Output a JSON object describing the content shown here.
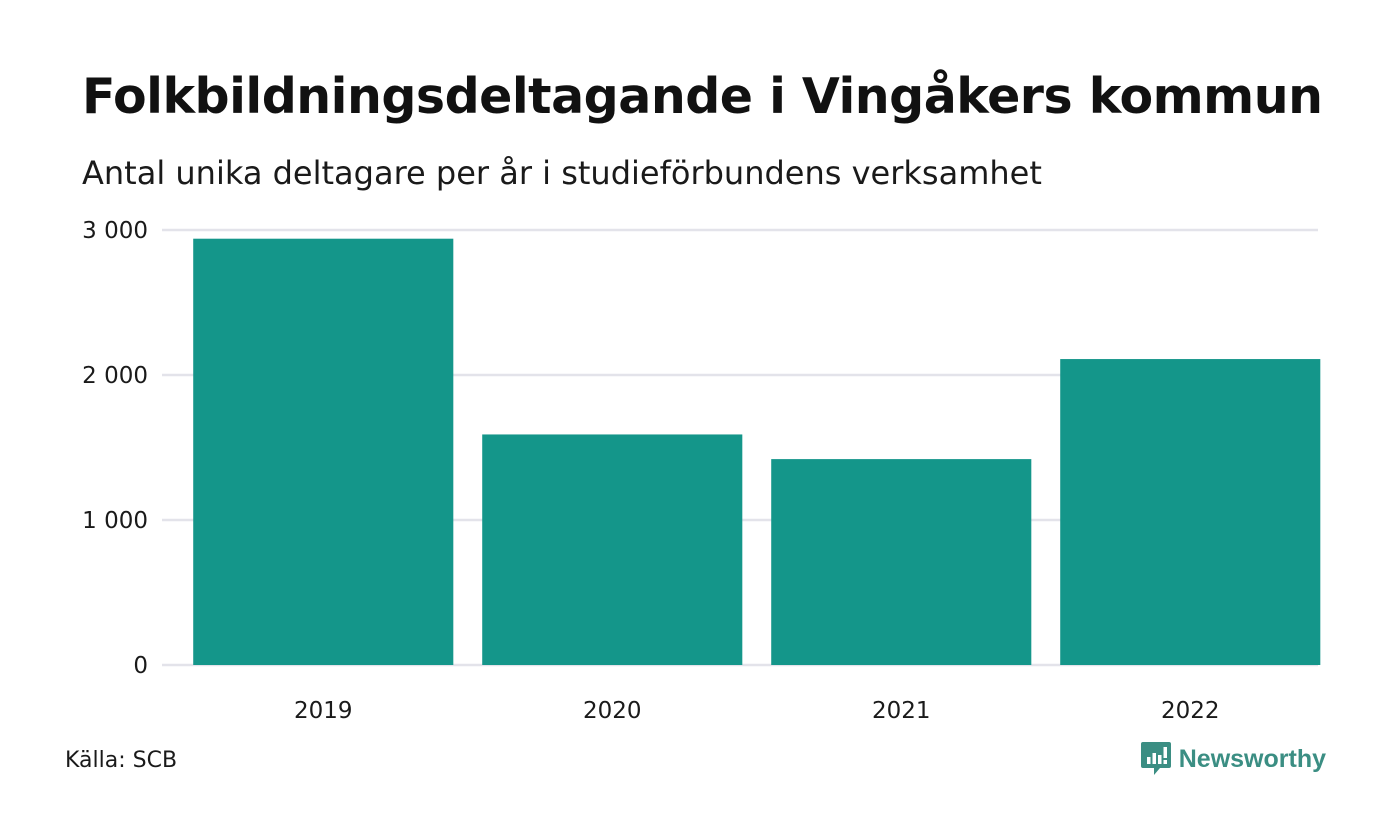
{
  "header": {
    "title": "Folkbildningsdeltagande i Vingåkers kommun",
    "subtitle": "Antal unika deltagare per år i studieförbundens verksamhet"
  },
  "footer": {
    "source": "Källa: SCB",
    "brand": "Newsworthy",
    "brand_icon": "bar-chart-speech-bubble-icon",
    "brand_color": "#3b8e83"
  },
  "chart_data": {
    "type": "bar",
    "categories": [
      "2019",
      "2020",
      "2021",
      "2022"
    ],
    "values": [
      2940,
      1590,
      1420,
      2110
    ],
    "ylim": [
      0,
      3000
    ],
    "yticks": [
      0,
      1000,
      2000,
      3000
    ],
    "ytick_labels": [
      "0",
      "1 000",
      "2 000",
      "3 000"
    ],
    "grid": true,
    "bar_color": "#14968a",
    "grid_color": "#e3e3ea"
  }
}
